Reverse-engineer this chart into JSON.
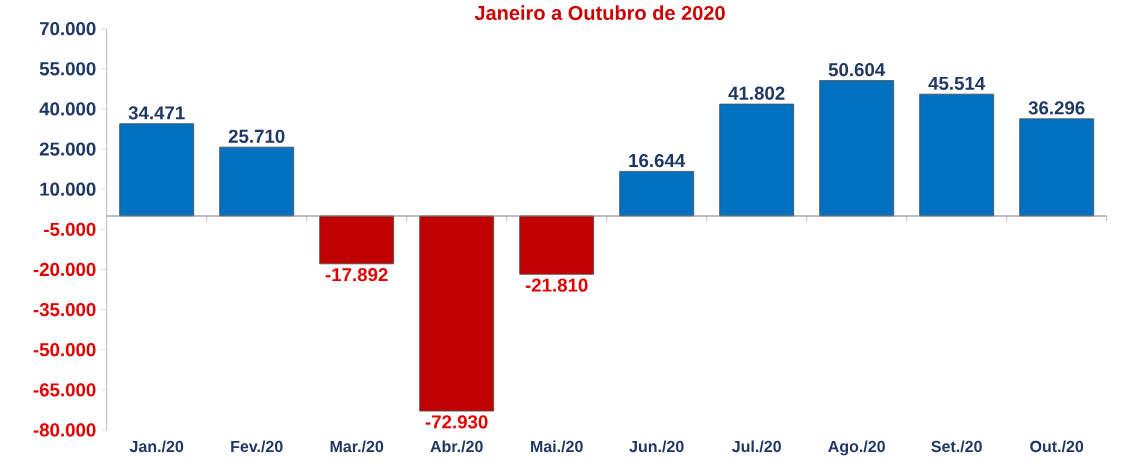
{
  "chart_data": {
    "type": "bar",
    "title": "Janeiro a Outubro de 2020",
    "categories": [
      "Jan./20",
      "Fev./20",
      "Mar./20",
      "Abr./20",
      "Mai./20",
      "Jun./20",
      "Jul./20",
      "Ago./20",
      "Set./20",
      "Out./20"
    ],
    "values": [
      34471,
      25710,
      -17892,
      -72930,
      -21810,
      16644,
      41802,
      50604,
      45514,
      36296
    ],
    "value_labels": [
      "34.471",
      "25.710",
      "-17.892",
      "-72.930",
      "-21.810",
      "16.644",
      "41.802",
      "50.604",
      "45.514",
      "36.296"
    ],
    "colors": [
      "#0070c0",
      "#0070c0",
      "#c00000",
      "#c00000",
      "#c00000",
      "#0070c0",
      "#0070c0",
      "#0070c0",
      "#0070c0",
      "#0070c0"
    ],
    "ylim": [
      -80000,
      70000
    ],
    "yticks": [
      {
        "value": -80000,
        "label": "-80.000"
      },
      {
        "value": -65000,
        "label": "-65.000"
      },
      {
        "value": -50000,
        "label": "-50.000"
      },
      {
        "value": -35000,
        "label": "-35.000"
      },
      {
        "value": -20000,
        "label": "-20.000"
      },
      {
        "value": -5000,
        "label": "-5.000"
      },
      {
        "value": 10000,
        "label": "10.000"
      },
      {
        "value": 25000,
        "label": "25.000"
      },
      {
        "value": 40000,
        "label": "40.000"
      },
      {
        "value": 55000,
        "label": "55.000"
      },
      {
        "value": 70000,
        "label": "70.000"
      }
    ],
    "grid": false
  }
}
